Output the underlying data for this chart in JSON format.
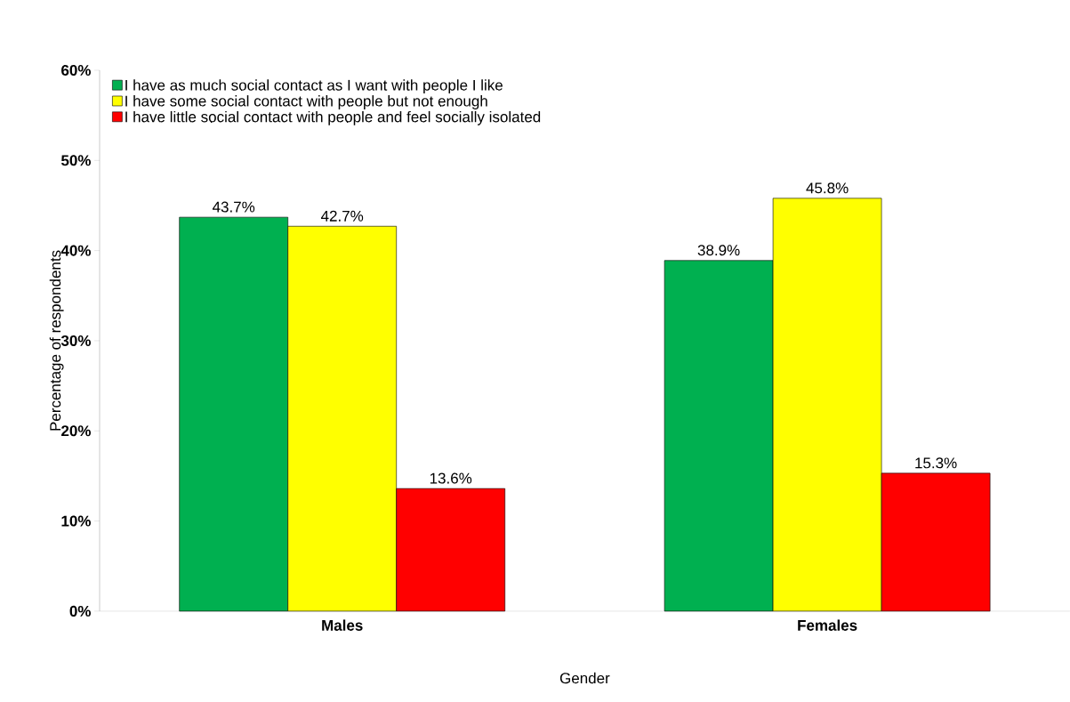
{
  "chart_data": {
    "type": "bar",
    "xlabel": "Gender",
    "ylabel": "Percentage of respondents",
    "categories": [
      "Males",
      "Females"
    ],
    "series": [
      {
        "name": "I have as much social contact as I want with people I like",
        "color": "#00b050",
        "values": [
          43.7,
          38.9
        ],
        "value_labels": [
          "43.7%",
          "38.9%"
        ]
      },
      {
        "name": "I have some social contact with people but not enough",
        "color": "#ffff00",
        "values": [
          42.7,
          45.8
        ],
        "value_labels": [
          "42.7%",
          "45.8%"
        ]
      },
      {
        "name": "I have little social contact with people and feel socially isolated",
        "color": "#ff0000",
        "values": [
          13.6,
          15.3
        ],
        "value_labels": [
          "13.6%",
          "15.3%"
        ]
      }
    ],
    "ylim": [
      0,
      60
    ],
    "yticks": [
      {
        "value": 0,
        "label": "0%"
      },
      {
        "value": 10,
        "label": "10%"
      },
      {
        "value": 20,
        "label": "20%"
      },
      {
        "value": 30,
        "label": "30%"
      },
      {
        "value": 40,
        "label": "40%"
      },
      {
        "value": 50,
        "label": "50%"
      },
      {
        "value": 60,
        "label": "60%"
      }
    ],
    "grid": false,
    "legend": "top left"
  }
}
